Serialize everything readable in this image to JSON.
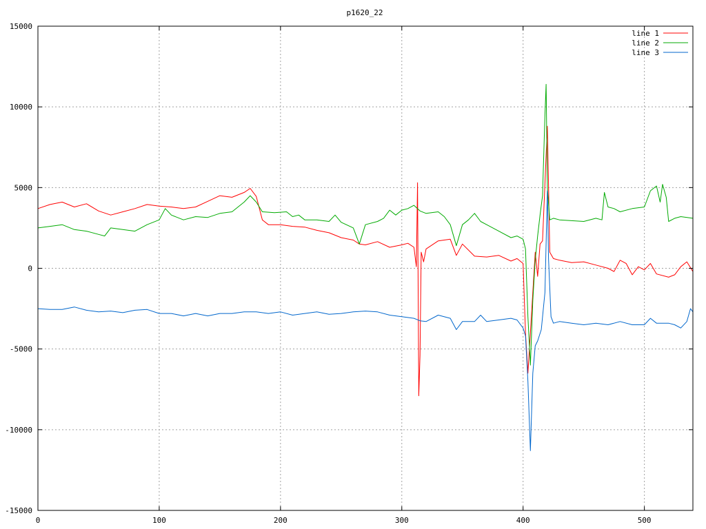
{
  "chart_data": {
    "type": "line",
    "title": "p1620_22",
    "xlabel": "",
    "ylabel": "",
    "xlim": [
      0,
      540
    ],
    "ylim": [
      -15000,
      15000
    ],
    "x_ticks": [
      0,
      100,
      200,
      300,
      400,
      500
    ],
    "y_ticks": [
      -15000,
      -10000,
      -5000,
      0,
      5000,
      10000,
      15000
    ],
    "grid": true,
    "legend_position": "top-right",
    "series": [
      {
        "name": "line 1",
        "color": "#ff0000",
        "points": [
          [
            0,
            3700
          ],
          [
            10,
            3950
          ],
          [
            20,
            4100
          ],
          [
            30,
            3800
          ],
          [
            40,
            4000
          ],
          [
            50,
            3550
          ],
          [
            60,
            3300
          ],
          [
            70,
            3500
          ],
          [
            80,
            3700
          ],
          [
            90,
            3950
          ],
          [
            100,
            3850
          ],
          [
            110,
            3800
          ],
          [
            120,
            3700
          ],
          [
            130,
            3800
          ],
          [
            140,
            4150
          ],
          [
            150,
            4500
          ],
          [
            160,
            4400
          ],
          [
            170,
            4700
          ],
          [
            175,
            4950
          ],
          [
            180,
            4450
          ],
          [
            185,
            3000
          ],
          [
            190,
            2700
          ],
          [
            200,
            2700
          ],
          [
            210,
            2600
          ],
          [
            220,
            2550
          ],
          [
            230,
            2350
          ],
          [
            240,
            2200
          ],
          [
            250,
            1900
          ],
          [
            260,
            1750
          ],
          [
            265,
            1500
          ],
          [
            270,
            1450
          ],
          [
            280,
            1650
          ],
          [
            290,
            1300
          ],
          [
            300,
            1450
          ],
          [
            305,
            1550
          ],
          [
            310,
            1300
          ],
          [
            312,
            100
          ],
          [
            313,
            5300
          ],
          [
            314,
            -7900
          ],
          [
            315,
            -5400
          ],
          [
            316,
            1000
          ],
          [
            318,
            400
          ],
          [
            320,
            1200
          ],
          [
            330,
            1700
          ],
          [
            340,
            1800
          ],
          [
            345,
            800
          ],
          [
            350,
            1500
          ],
          [
            360,
            750
          ],
          [
            370,
            700
          ],
          [
            380,
            800
          ],
          [
            390,
            450
          ],
          [
            395,
            600
          ],
          [
            400,
            300
          ],
          [
            402,
            -4000
          ],
          [
            404,
            -6500
          ],
          [
            406,
            -4000
          ],
          [
            410,
            1000
          ],
          [
            412,
            -500
          ],
          [
            414,
            1500
          ],
          [
            416,
            1700
          ],
          [
            420,
            8800
          ],
          [
            421,
            5200
          ],
          [
            422,
            1000
          ],
          [
            425,
            600
          ],
          [
            430,
            500
          ],
          [
            440,
            350
          ],
          [
            450,
            400
          ],
          [
            460,
            200
          ],
          [
            470,
            0
          ],
          [
            475,
            -200
          ],
          [
            480,
            500
          ],
          [
            485,
            300
          ],
          [
            490,
            -400
          ],
          [
            495,
            100
          ],
          [
            500,
            -100
          ],
          [
            505,
            300
          ],
          [
            510,
            -350
          ],
          [
            520,
            -550
          ],
          [
            525,
            -400
          ],
          [
            530,
            100
          ],
          [
            535,
            400
          ],
          [
            540,
            -200
          ]
        ]
      },
      {
        "name": "line 2",
        "color": "#00aa00",
        "points": [
          [
            0,
            2500
          ],
          [
            10,
            2600
          ],
          [
            20,
            2700
          ],
          [
            30,
            2400
          ],
          [
            40,
            2300
          ],
          [
            50,
            2100
          ],
          [
            55,
            2000
          ],
          [
            60,
            2500
          ],
          [
            70,
            2400
          ],
          [
            80,
            2300
          ],
          [
            90,
            2700
          ],
          [
            100,
            3000
          ],
          [
            105,
            3700
          ],
          [
            110,
            3300
          ],
          [
            120,
            3000
          ],
          [
            130,
            3200
          ],
          [
            140,
            3150
          ],
          [
            150,
            3400
          ],
          [
            160,
            3500
          ],
          [
            170,
            4100
          ],
          [
            175,
            4500
          ],
          [
            180,
            4100
          ],
          [
            185,
            3500
          ],
          [
            195,
            3450
          ],
          [
            205,
            3500
          ],
          [
            210,
            3200
          ],
          [
            215,
            3300
          ],
          [
            220,
            3000
          ],
          [
            230,
            3000
          ],
          [
            240,
            2900
          ],
          [
            245,
            3300
          ],
          [
            250,
            2850
          ],
          [
            260,
            2500
          ],
          [
            265,
            1500
          ],
          [
            270,
            2700
          ],
          [
            280,
            2900
          ],
          [
            285,
            3100
          ],
          [
            290,
            3600
          ],
          [
            295,
            3300
          ],
          [
            300,
            3600
          ],
          [
            305,
            3700
          ],
          [
            310,
            3900
          ],
          [
            315,
            3550
          ],
          [
            320,
            3400
          ],
          [
            330,
            3500
          ],
          [
            335,
            3200
          ],
          [
            340,
            2700
          ],
          [
            345,
            1400
          ],
          [
            350,
            2700
          ],
          [
            355,
            3000
          ],
          [
            360,
            3400
          ],
          [
            365,
            2900
          ],
          [
            370,
            2700
          ],
          [
            380,
            2300
          ],
          [
            390,
            1900
          ],
          [
            395,
            2000
          ],
          [
            400,
            1800
          ],
          [
            402,
            1200
          ],
          [
            404,
            -3000
          ],
          [
            406,
            -6000
          ],
          [
            408,
            -2000
          ],
          [
            410,
            500
          ],
          [
            412,
            2000
          ],
          [
            414,
            3300
          ],
          [
            416,
            4500
          ],
          [
            418,
            9500
          ],
          [
            419,
            11400
          ],
          [
            420,
            5000
          ],
          [
            422,
            3000
          ],
          [
            425,
            3100
          ],
          [
            430,
            3000
          ],
          [
            440,
            2950
          ],
          [
            450,
            2900
          ],
          [
            460,
            3100
          ],
          [
            465,
            3000
          ],
          [
            467,
            4700
          ],
          [
            470,
            3800
          ],
          [
            475,
            3700
          ],
          [
            480,
            3500
          ],
          [
            490,
            3700
          ],
          [
            500,
            3800
          ],
          [
            505,
            4800
          ],
          [
            510,
            5100
          ],
          [
            513,
            4100
          ],
          [
            515,
            5200
          ],
          [
            518,
            4400
          ],
          [
            520,
            2900
          ],
          [
            525,
            3100
          ],
          [
            530,
            3200
          ],
          [
            540,
            3100
          ]
        ]
      },
      {
        "name": "line 3",
        "color": "#0066cc",
        "points": [
          [
            0,
            -2500
          ],
          [
            10,
            -2550
          ],
          [
            20,
            -2550
          ],
          [
            30,
            -2400
          ],
          [
            40,
            -2600
          ],
          [
            50,
            -2700
          ],
          [
            60,
            -2650
          ],
          [
            70,
            -2750
          ],
          [
            80,
            -2600
          ],
          [
            90,
            -2550
          ],
          [
            100,
            -2800
          ],
          [
            110,
            -2800
          ],
          [
            120,
            -2950
          ],
          [
            130,
            -2800
          ],
          [
            140,
            -2950
          ],
          [
            150,
            -2800
          ],
          [
            160,
            -2800
          ],
          [
            170,
            -2700
          ],
          [
            180,
            -2700
          ],
          [
            190,
            -2800
          ],
          [
            200,
            -2700
          ],
          [
            210,
            -2900
          ],
          [
            220,
            -2800
          ],
          [
            230,
            -2700
          ],
          [
            240,
            -2850
          ],
          [
            250,
            -2800
          ],
          [
            260,
            -2700
          ],
          [
            270,
            -2650
          ],
          [
            280,
            -2700
          ],
          [
            290,
            -2900
          ],
          [
            300,
            -3000
          ],
          [
            310,
            -3100
          ],
          [
            315,
            -3250
          ],
          [
            320,
            -3300
          ],
          [
            330,
            -2900
          ],
          [
            340,
            -3100
          ],
          [
            345,
            -3800
          ],
          [
            350,
            -3300
          ],
          [
            360,
            -3300
          ],
          [
            365,
            -2900
          ],
          [
            370,
            -3300
          ],
          [
            380,
            -3200
          ],
          [
            390,
            -3100
          ],
          [
            395,
            -3200
          ],
          [
            400,
            -3700
          ],
          [
            402,
            -4200
          ],
          [
            404,
            -7000
          ],
          [
            406,
            -11300
          ],
          [
            408,
            -6500
          ],
          [
            410,
            -4800
          ],
          [
            412,
            -4500
          ],
          [
            415,
            -3800
          ],
          [
            418,
            -1500
          ],
          [
            420,
            4800
          ],
          [
            421,
            600
          ],
          [
            423,
            -3000
          ],
          [
            425,
            -3400
          ],
          [
            430,
            -3300
          ],
          [
            440,
            -3400
          ],
          [
            450,
            -3500
          ],
          [
            460,
            -3400
          ],
          [
            470,
            -3500
          ],
          [
            480,
            -3300
          ],
          [
            490,
            -3500
          ],
          [
            500,
            -3500
          ],
          [
            505,
            -3100
          ],
          [
            510,
            -3400
          ],
          [
            520,
            -3400
          ],
          [
            525,
            -3500
          ],
          [
            530,
            -3700
          ],
          [
            535,
            -3300
          ],
          [
            538,
            -2500
          ],
          [
            540,
            -2700
          ]
        ]
      }
    ]
  }
}
